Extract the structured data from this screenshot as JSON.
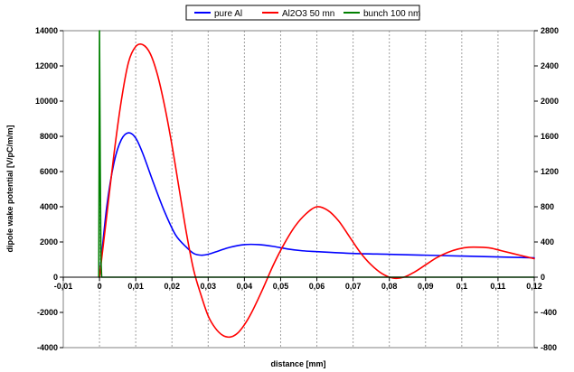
{
  "chart_data": {
    "type": "line",
    "title": "",
    "xlabel": "distance [mm]",
    "ylabel": "dipole wake potential [V/pC/m/m]",
    "xlim": [
      -0.01,
      0.12
    ],
    "ylim": [
      -4000,
      14000
    ],
    "y2lim": [
      -800,
      2800
    ],
    "x_ticks": [
      "-0,01",
      "0",
      "0,01",
      "0,02",
      "0,03",
      "0,04",
      "0,05",
      "0,06",
      "0,07",
      "0,08",
      "0,09",
      "0,1",
      "0,11",
      "0,12"
    ],
    "x_tick_values": [
      -0.01,
      0,
      0.01,
      0.02,
      0.03,
      0.04,
      0.05,
      0.06,
      0.07,
      0.08,
      0.09,
      0.1,
      0.11,
      0.12
    ],
    "y_ticks": [
      "-4000",
      "-2000",
      "0",
      "2000",
      "4000",
      "6000",
      "8000",
      "10000",
      "12000",
      "14000"
    ],
    "y_tick_values": [
      -4000,
      -2000,
      0,
      2000,
      4000,
      6000,
      8000,
      10000,
      12000,
      14000
    ],
    "y2_ticks": [
      "-800",
      "-400",
      "0",
      "400",
      "800",
      "1200",
      "1600",
      "2000",
      "2400",
      "2800"
    ],
    "y2_tick_values": [
      -800,
      -400,
      0,
      400,
      800,
      1200,
      1600,
      2000,
      2400,
      2800
    ],
    "grid": "vertical",
    "legend_position": "top",
    "series": [
      {
        "name": "pure Al",
        "color": "#0000ff",
        "axis": "left",
        "x": [
          0,
          0.002,
          0.004,
          0.006,
          0.008,
          0.01,
          0.012,
          0.015,
          0.018,
          0.021,
          0.024,
          0.026,
          0.028,
          0.03,
          0.033,
          0.036,
          0.04,
          0.044,
          0.048,
          0.052,
          0.056,
          0.06,
          0.07,
          0.08,
          0.09,
          0.1,
          0.11,
          0.12
        ],
        "y": [
          0,
          4000,
          6500,
          7800,
          8200,
          7900,
          7000,
          5300,
          3700,
          2400,
          1700,
          1350,
          1250,
          1300,
          1500,
          1700,
          1850,
          1850,
          1750,
          1600,
          1500,
          1450,
          1350,
          1300,
          1250,
          1200,
          1150,
          1100
        ]
      },
      {
        "name": "Al2O3 50 mn",
        "color": "#ff0000",
        "axis": "left",
        "x": [
          0,
          0.002,
          0.004,
          0.006,
          0.008,
          0.01,
          0.012,
          0.014,
          0.016,
          0.018,
          0.02,
          0.022,
          0.024,
          0.026,
          0.028,
          0.03,
          0.032,
          0.034,
          0.036,
          0.038,
          0.04,
          0.042,
          0.045,
          0.048,
          0.051,
          0.054,
          0.057,
          0.06,
          0.063,
          0.066,
          0.069,
          0.072,
          0.075,
          0.078,
          0.081,
          0.084,
          0.087,
          0.09,
          0.093,
          0.096,
          0.099,
          0.102,
          0.105,
          0.108,
          0.111,
          0.114,
          0.117,
          0.12
        ],
        "y": [
          0,
          3500,
          7000,
          10000,
          12200,
          13100,
          13200,
          12700,
          11500,
          9700,
          7500,
          5000,
          2500,
          400,
          -1000,
          -2200,
          -2900,
          -3300,
          -3400,
          -3200,
          -2700,
          -2000,
          -700,
          700,
          1900,
          2900,
          3600,
          4000,
          3800,
          3200,
          2300,
          1400,
          700,
          200,
          -50,
          0,
          300,
          700,
          1100,
          1400,
          1600,
          1700,
          1700,
          1650,
          1500,
          1350,
          1200,
          1050
        ]
      },
      {
        "name": "bunch 100 nm",
        "color": "#008000",
        "axis": "right",
        "x": [
          -0.0002,
          0,
          0.0002,
          0.0004,
          0.0006,
          0.01,
          0.05,
          0.1,
          0.12
        ],
        "y": [
          0,
          2800,
          1300,
          200,
          0,
          0,
          0,
          0,
          0
        ]
      }
    ]
  }
}
